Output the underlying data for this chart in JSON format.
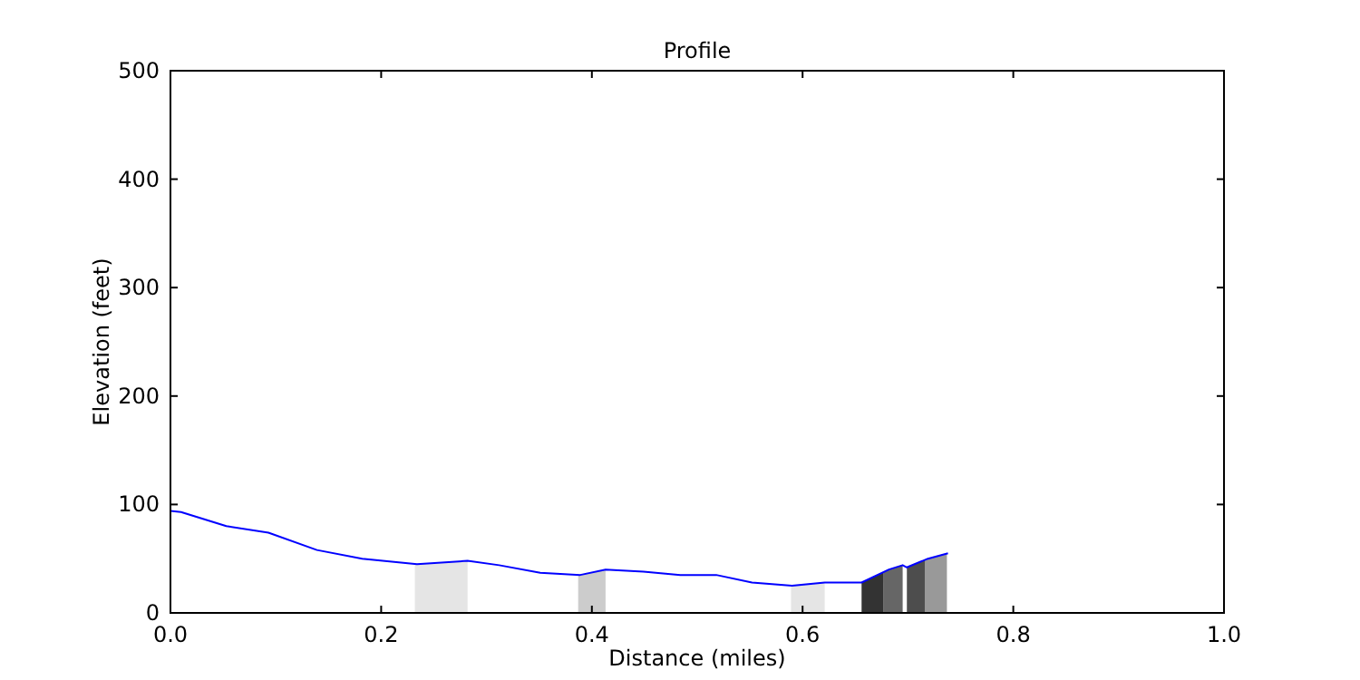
{
  "chart_data": {
    "type": "line",
    "title": "Profile",
    "xlabel": "Distance (miles)",
    "ylabel": "Elevation (feet)",
    "xlim": [
      0,
      1
    ],
    "ylim": [
      0,
      500
    ],
    "xticks": [
      {
        "value": 0,
        "label": "0.0"
      },
      {
        "value": 0.2,
        "label": "0.2"
      },
      {
        "value": 0.4,
        "label": "0.4"
      },
      {
        "value": 0.6,
        "label": "0.6"
      },
      {
        "value": 0.8,
        "label": "0.8"
      },
      {
        "value": 1,
        "label": "1.0"
      }
    ],
    "yticks": [
      0,
      100,
      200,
      300,
      400,
      500
    ],
    "marker": "none",
    "line_style": "solid",
    "series": [
      {
        "type": "area",
        "color": "#e5e5e5",
        "x": [
          0.232,
          0.282
        ],
        "values": [
          45,
          48
        ]
      },
      {
        "type": "area",
        "color": "#cccccc",
        "x": [
          0.387,
          0.413
        ],
        "values": [
          35,
          40
        ]
      },
      {
        "type": "area",
        "color": "#e5e5e5",
        "x": [
          0.589,
          0.621
        ],
        "values": [
          25,
          28
        ]
      },
      {
        "type": "area",
        "color": "#333333",
        "x": [
          0.656,
          0.677
        ],
        "values": [
          28,
          38
        ]
      },
      {
        "type": "area",
        "color": "#666666",
        "x": [
          0.677,
          0.695
        ],
        "values": [
          38,
          44
        ]
      },
      {
        "type": "area",
        "color": "#4d4d4d",
        "x": [
          0.699,
          0.716
        ],
        "values": [
          42,
          49
        ]
      },
      {
        "type": "area",
        "color": "#999999",
        "x": [
          0.716,
          0.737
        ],
        "values": [
          49,
          55
        ]
      },
      {
        "color": "#0000ff",
        "x": [
          0,
          0.01,
          0.053,
          0.093,
          0.139,
          0.182,
          0.234,
          0.282,
          0.312,
          0.351,
          0.389,
          0.413,
          0.449,
          0.484,
          0.518,
          0.552,
          0.59,
          0.621,
          0.656,
          0.682,
          0.695,
          0.699,
          0.719,
          0.738
        ],
        "values": [
          94,
          93,
          80,
          74,
          58,
          50,
          45,
          48,
          44,
          37,
          35,
          40,
          38,
          35,
          35,
          28,
          25,
          28,
          28,
          40,
          44,
          42,
          50,
          55
        ]
      }
    ]
  }
}
